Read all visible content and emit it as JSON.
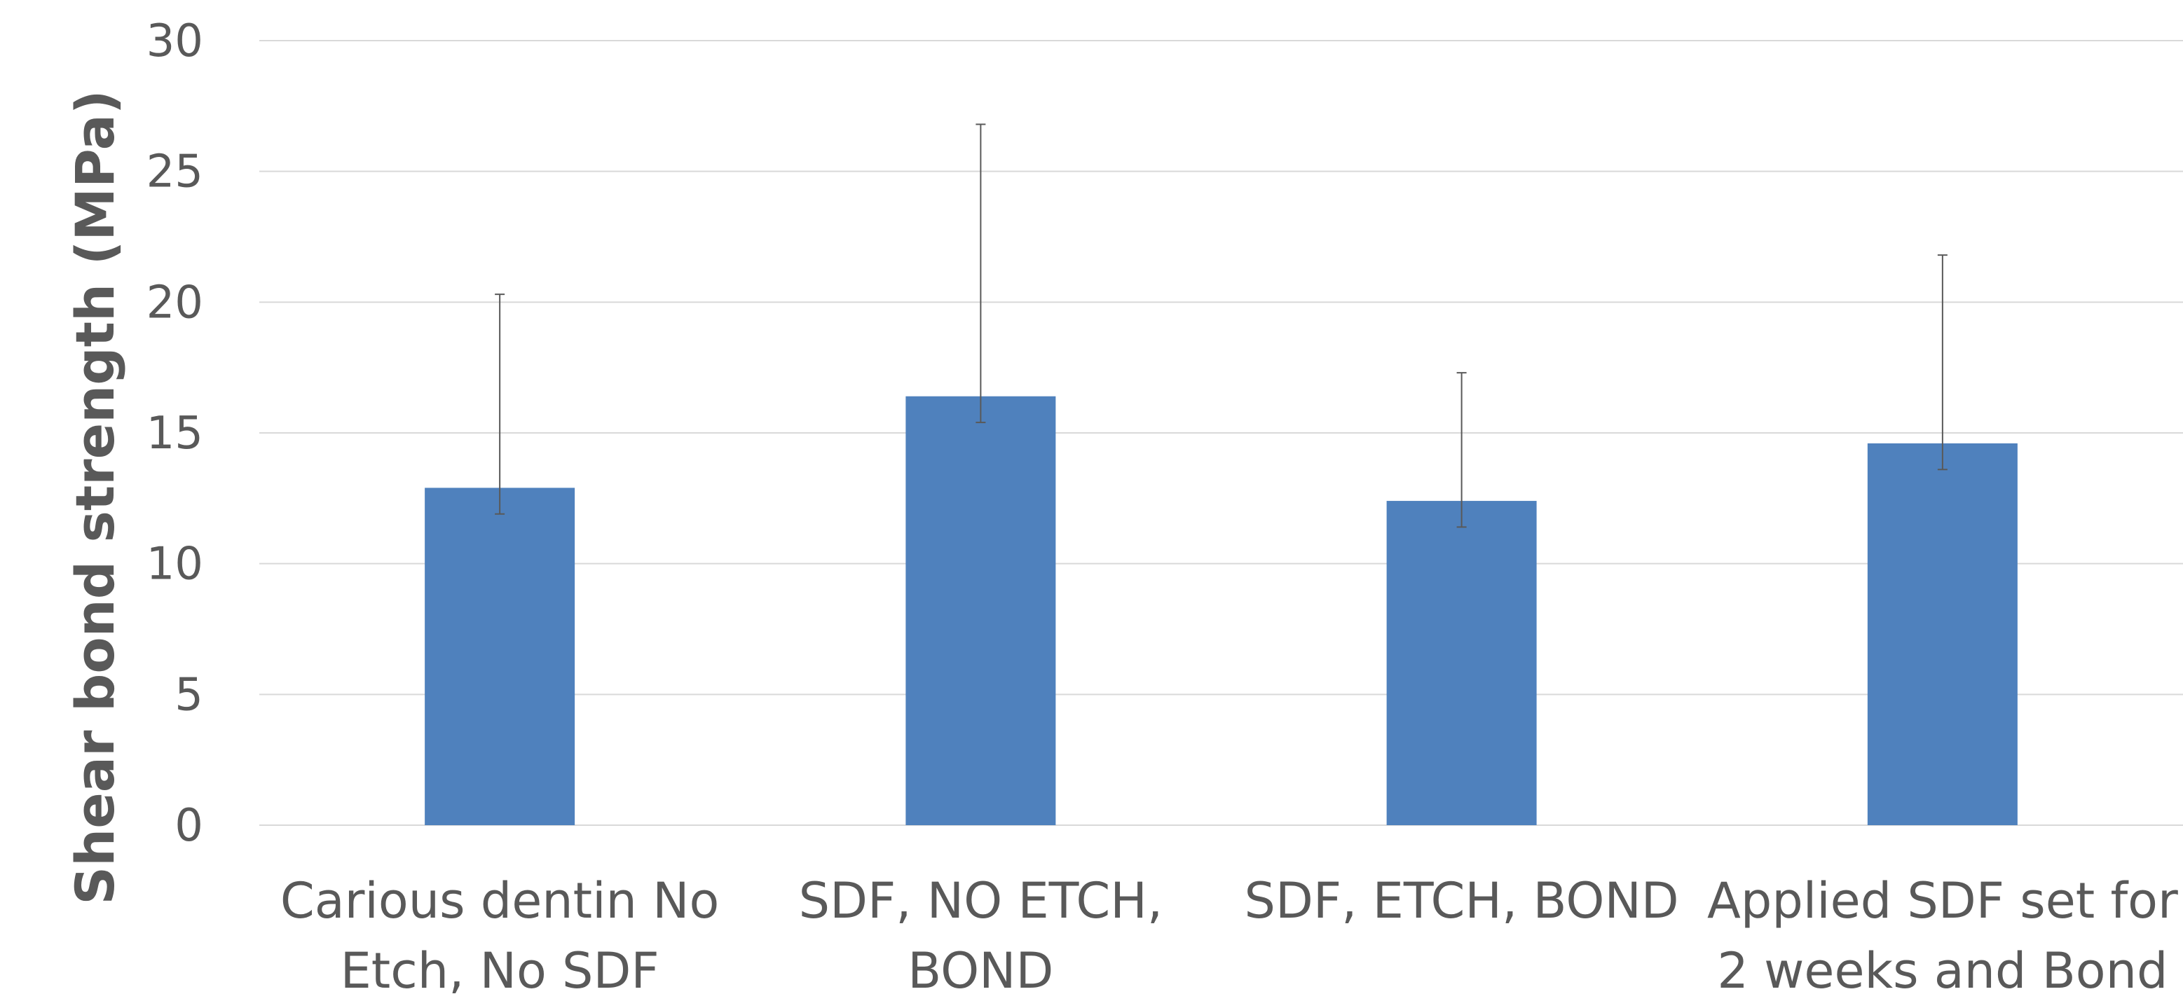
{
  "chart_data": {
    "type": "bar",
    "title": "",
    "xlabel": "",
    "ylabel": "Shear bond strength (MPa)",
    "ylim": [
      0,
      30
    ],
    "yticks": [
      0,
      5,
      10,
      15,
      20,
      25,
      30
    ],
    "grid": true,
    "categories": [
      [
        "Carious dentin No",
        "Etch, No SDF"
      ],
      [
        "SDF,  NO ETCH,",
        "BOND"
      ],
      [
        "SDF, ETCH, BOND"
      ],
      [
        "Applied SDF set for",
        "2 weeks and Bond"
      ]
    ],
    "series": [
      {
        "values": [
          12.9,
          16.4,
          12.4,
          14.6
        ],
        "error_bars": [
          {
            "low": 11.9,
            "high": 20.3
          },
          {
            "low": 15.4,
            "high": 26.8
          },
          {
            "low": 11.4,
            "high": 17.3
          },
          {
            "low": 13.6,
            "high": 21.8
          }
        ],
        "color": "#4F81BD"
      }
    ],
    "colors": {
      "gridline": "#D9D9D9",
      "text": "#595959",
      "error_bar": "#595959"
    }
  }
}
